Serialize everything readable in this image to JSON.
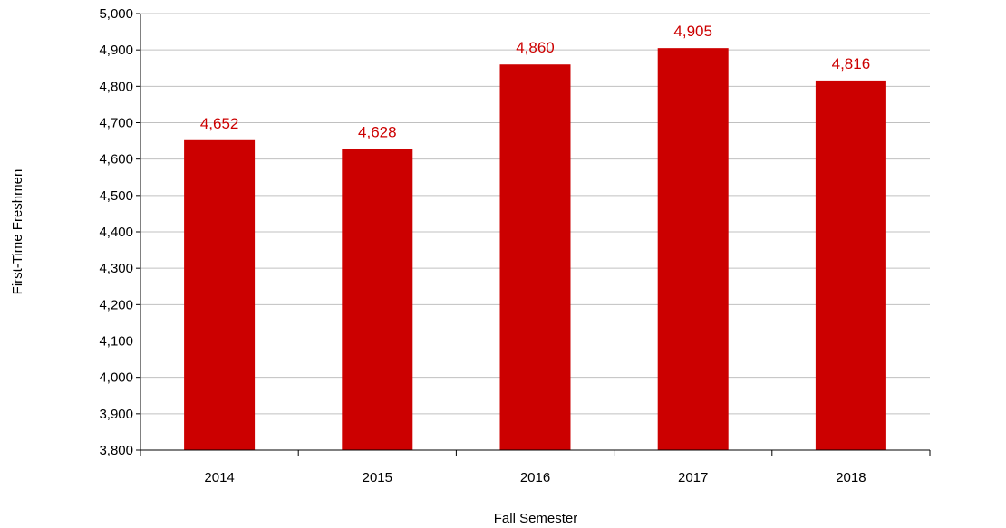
{
  "chart_data": {
    "type": "bar",
    "categories": [
      "2014",
      "2015",
      "2016",
      "2017",
      "2018"
    ],
    "values": [
      4652,
      4628,
      4860,
      4905,
      4816
    ],
    "data_labels": [
      "4,652",
      "4,628",
      "4,860",
      "4,905",
      "4,816"
    ],
    "title": "",
    "xlabel": "Fall Semester",
    "ylabel": "First-Time Freshmen",
    "ylim": [
      3800,
      5000
    ],
    "y_ticks": [
      3800,
      3900,
      4000,
      4100,
      4200,
      4300,
      4400,
      4500,
      4600,
      4700,
      4800,
      4900,
      5000
    ],
    "y_tick_labels": [
      "3,800",
      "3,900",
      "4,000",
      "4,100",
      "4,200",
      "4,300",
      "4,400",
      "4,500",
      "4,600",
      "4,700",
      "4,800",
      "4,900",
      "5,000"
    ],
    "grid": true,
    "legend": "none",
    "bar_color": "#cc0000",
    "label_color": "#cc0000",
    "grid_color": "#c0c0c0"
  }
}
